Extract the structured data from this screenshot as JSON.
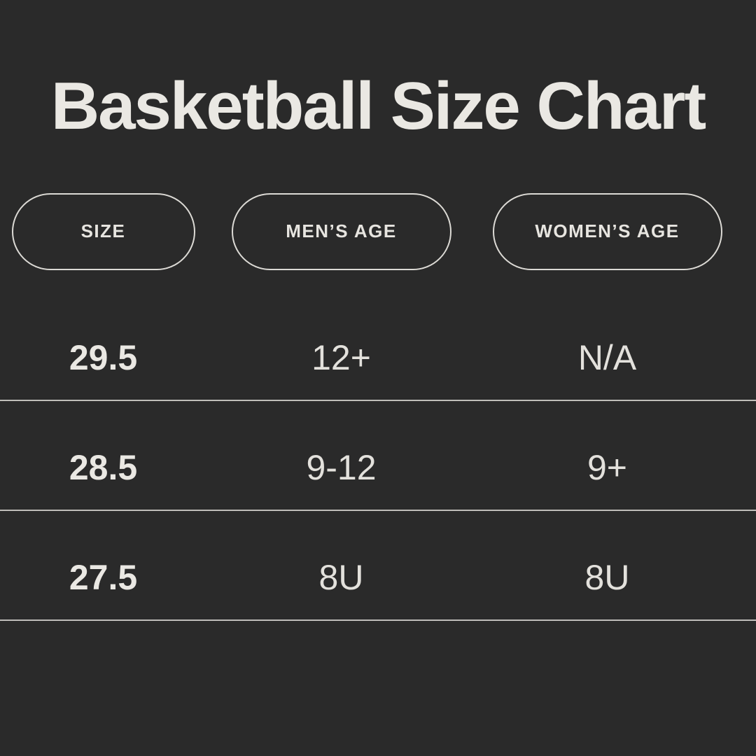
{
  "title": "Basketball Size Chart",
  "colors": {
    "background": "#2a2a2a",
    "text": "#eae8e3",
    "divider": "#c0beba",
    "pill_border": "#dcdad5"
  },
  "chart_data": {
    "type": "table",
    "title": "Basketball Size Chart",
    "columns": [
      "SIZE",
      "MEN’S AGE",
      "WOMEN’S AGE"
    ],
    "rows": [
      [
        "29.5",
        "12+",
        "N/A"
      ],
      [
        "28.5",
        "9-12",
        "9+"
      ],
      [
        "27.5",
        "8U",
        "8U"
      ]
    ]
  }
}
